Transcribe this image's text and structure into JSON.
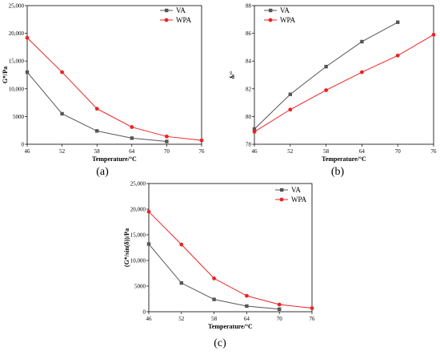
{
  "colors": {
    "va": "#555555",
    "wpa": "#ee2222"
  },
  "chart_data": [
    {
      "id": "a",
      "caption": "(a)",
      "type": "line",
      "xlabel": "Temperature/°C",
      "ylabel": "G*/Pa",
      "x_ticks": [
        "46",
        "52",
        "58",
        "64",
        "70",
        "76"
      ],
      "y_ticks": [
        "0",
        "5000",
        "10,000",
        "15,000",
        "20,000",
        "25,000"
      ],
      "xlim": [
        46,
        76
      ],
      "ylim": [
        0,
        25000
      ],
      "legend": "top-right",
      "series": [
        {
          "name": "VA",
          "x": [
            46,
            52,
            58,
            64,
            70
          ],
          "y": [
            13000,
            5500,
            2400,
            1100,
            500
          ]
        },
        {
          "name": "WPA",
          "x": [
            46,
            52,
            58,
            64,
            70,
            76
          ],
          "y": [
            19200,
            13000,
            6400,
            3100,
            1400,
            700
          ]
        }
      ]
    },
    {
      "id": "b",
      "caption": "(b)",
      "type": "line",
      "xlabel": "Temperature/°C",
      "ylabel": "δ/°",
      "x_ticks": [
        "46",
        "52",
        "58",
        "64",
        "70",
        "76"
      ],
      "y_ticks": [
        "78",
        "80",
        "82",
        "84",
        "86",
        "88"
      ],
      "xlim": [
        46,
        76
      ],
      "ylim": [
        78,
        88
      ],
      "legend": "top-left",
      "series": [
        {
          "name": "VA",
          "x": [
            46,
            52,
            58,
            64,
            70
          ],
          "y": [
            79.1,
            81.6,
            83.6,
            85.4,
            86.8
          ]
        },
        {
          "name": "WPA",
          "x": [
            46,
            52,
            58,
            64,
            70,
            76
          ],
          "y": [
            78.9,
            80.5,
            81.9,
            83.2,
            84.4,
            85.9
          ]
        }
      ]
    },
    {
      "id": "c",
      "caption": "(c)",
      "type": "line",
      "xlabel": "Temperature/°C",
      "ylabel": "(G*/sin(δ))/Pa",
      "x_ticks": [
        "46",
        "52",
        "58",
        "64",
        "70",
        "76"
      ],
      "y_ticks": [
        "0",
        "5000",
        "10,000",
        "15,000",
        "20,000",
        "25,000"
      ],
      "xlim": [
        46,
        76
      ],
      "ylim": [
        0,
        25000
      ],
      "legend": "top-right",
      "series": [
        {
          "name": "VA",
          "x": [
            46,
            52,
            58,
            64,
            70
          ],
          "y": [
            13200,
            5600,
            2400,
            1100,
            500
          ]
        },
        {
          "name": "WPA",
          "x": [
            46,
            52,
            58,
            64,
            70,
            76
          ],
          "y": [
            19500,
            13100,
            6500,
            3100,
            1400,
            700
          ]
        }
      ]
    }
  ]
}
